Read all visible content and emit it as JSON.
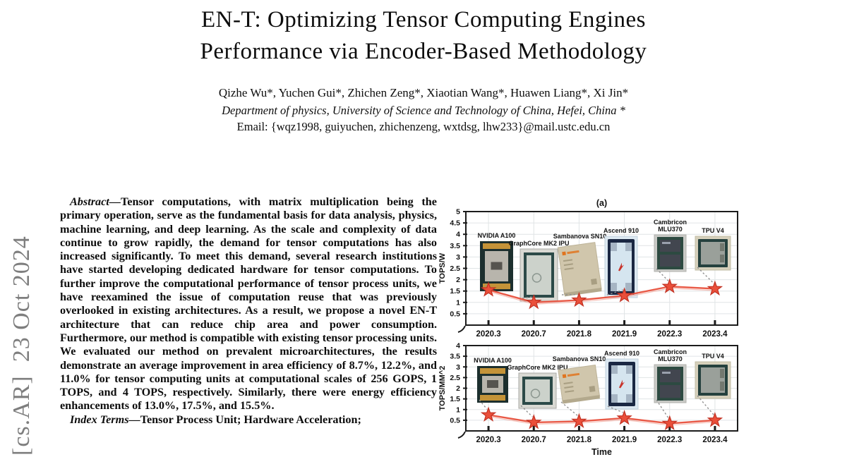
{
  "arxiv_stamp": {
    "text": "[cs.AR]  23 Oct 2024",
    "color": "#7e7e7e"
  },
  "header": {
    "title_line1": "EN-T: Optimizing Tensor Computing Engines",
    "title_line2": "Performance via Encoder-Based Methodology",
    "authors": "Qizhe Wu*, Yuchen Gui*, Zhichen Zeng*, Xiaotian Wang*, Huawen Liang*, Xi Jin*",
    "affiliation": "Department of physics, University of Science and Technology of China, Hefei, China *",
    "email": "Email: {wqz1998, guiyuchen, zhichenzeng, wxtdsg, lhw233}@mail.ustc.edu.cn"
  },
  "abstract": {
    "label": "Abstract—",
    "body": "Tensor computations, with matrix multiplication being the primary operation, serve as the fundamental basis for data analysis, physics, machine learning, and deep learning. As the scale and complexity of data continue to grow rapidly, the demand for tensor computations has also increased significantly. To meet this demand, several research institutions have started developing dedicated hardware for tensor computations. To further improve the computational performance of tensor process units, we have reexamined the issue of computation reuse that was previously overlooked in existing architectures. As a result, we propose a novel EN-T architecture that can reduce chip area and power consumption. Furthermore, our method is compatible with existing tensor processing units. We evaluated our method on prevalent microarchitectures, the results demonstrate an average improvement in area efficiency of 8.7%, 12.2%, and 11.0% for tensor computing units at computational scales of 256 GOPS, 1 TOPS, and 4 TOPS, respectively. Similarly, there were energy efficiency enhancements of 13.0%, 17.5%, and 15.5%.",
    "index_terms_label": "Index Terms—",
    "index_terms_body": "Tensor Process Unit; Hardware Acceleration;"
  },
  "figure": {
    "chips": [
      {
        "id": "nvidia-a100",
        "label_lines": [
          "NVIDIA A100"
        ],
        "colors": {
          "frame": "#1c2f2e",
          "gold": "#c49338",
          "die": "#b8b5ac",
          "logo": "#44433e"
        }
      },
      {
        "id": "graphcore-mk2-ipu",
        "label_lines": [
          "GraphCore MK2 IPU"
        ],
        "colors": {
          "outer": "#d9d9d3",
          "frame": "#2c4a48",
          "die": "#ccd2cb",
          "logo": "#8b968f"
        }
      },
      {
        "id": "sambanova-sn10",
        "label_lines": [
          "Sambanova SN10"
        ],
        "colors": {
          "body": "#d0c6ac",
          "shade": "#b3a98d",
          "logo": "#e0741f",
          "text": "#a89e82"
        }
      },
      {
        "id": "ascend-910",
        "label_lines": [
          "Ascend 910"
        ],
        "colors": {
          "outer": "#dce8f1",
          "frame": "#1a2742",
          "die": "#d5e5ef",
          "accent": "#c8342b"
        }
      },
      {
        "id": "cambricon-mlu370",
        "label_lines": [
          "Cambricon",
          "MLU370"
        ],
        "colors": {
          "outer": "#c9cac6",
          "frame": "#2d4a41",
          "die": "#42464f",
          "text": "#9aa0ad"
        }
      },
      {
        "id": "tpu-v4",
        "label_lines": [
          "TPU V4"
        ],
        "colors": {
          "outer": "#d6d0bb",
          "frame": "#25413e",
          "die": "#9aa09a"
        }
      }
    ]
  },
  "chart_data": [
    {
      "type": "line",
      "subplot_label": "(a)",
      "x": [
        "2020.3",
        "2020.7",
        "2021.8",
        "2021.9",
        "2022.3",
        "2023.4"
      ],
      "series": [
        {
          "name": "TOPS/W",
          "values": [
            1.55,
            1.0,
            1.1,
            1.3,
            1.7,
            1.6
          ]
        }
      ],
      "xlabel": "",
      "ylabel": "TOPS/W",
      "ylim": [
        0,
        5
      ],
      "ytick_step": 0.5,
      "grid": true,
      "marker": "star",
      "line_color": "#e8503c",
      "point_labels": [
        "NVIDIA A100",
        "GraphCore MK2 IPU",
        "Sambanova SN10",
        "Ascend 910",
        "Cambricon MLU370",
        "TPU V4"
      ]
    },
    {
      "type": "line",
      "subplot_label": "",
      "x": [
        "2020.3",
        "2020.7",
        "2021.8",
        "2021.9",
        "2022.3",
        "2023.4"
      ],
      "series": [
        {
          "name": "TOPS/MM^2",
          "values": [
            0.75,
            0.4,
            0.45,
            0.6,
            0.35,
            0.5
          ]
        }
      ],
      "xlabel": "Time",
      "ylabel": "TOPS/MM^2",
      "ylim": [
        0,
        4
      ],
      "ytick_step": 0.5,
      "grid": true,
      "marker": "star",
      "line_color": "#e8503c",
      "point_labels": [
        "NVIDIA A100",
        "GraphCore MK2 IPU",
        "Sambanova SN10",
        "Ascend 910",
        "Cambricon MLU370",
        "TPU V4"
      ]
    }
  ]
}
